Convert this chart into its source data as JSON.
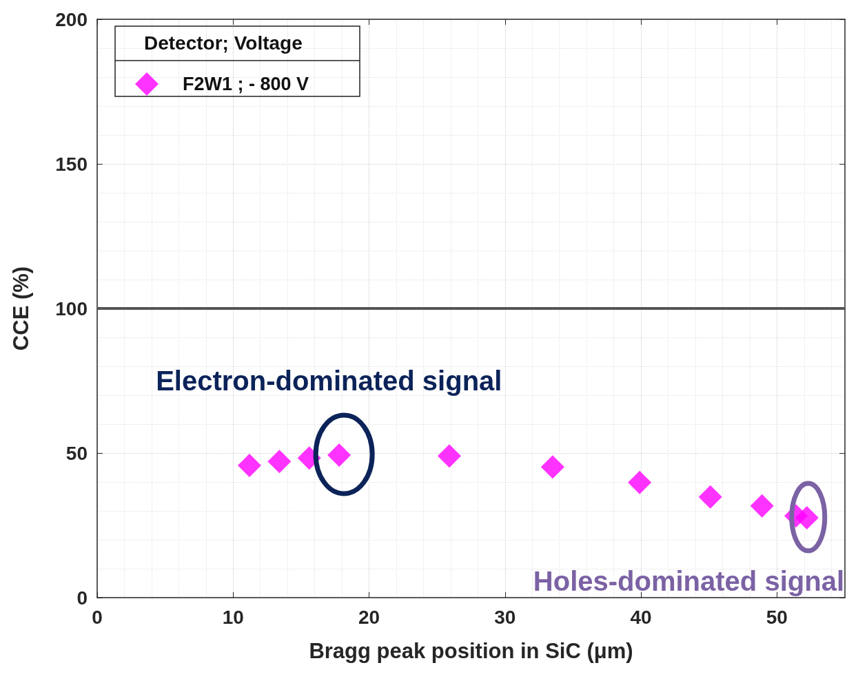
{
  "chart_data": {
    "type": "scatter",
    "xlabel": "Bragg peak position in SiC (μm)",
    "ylabel": "CCE (%)",
    "legend_title": "Detector; Voltage",
    "x": [
      11.2,
      13.4,
      15.6,
      17.8,
      25.9,
      33.5,
      39.9,
      45.1,
      48.9,
      51.4,
      52.2
    ],
    "series": [
      {
        "name": "F2W1 ; - 800 V",
        "color": "#ff00ff",
        "values": [
          45.7,
          47.1,
          48.3,
          49.3,
          49.0,
          45.2,
          39.8,
          34.8,
          31.7,
          28.3,
          27.6
        ]
      }
    ],
    "xlim": [
      0,
      55
    ],
    "xticks": [
      0,
      10,
      20,
      30,
      40,
      50
    ],
    "ylim": [
      0,
      200
    ],
    "yticks": [
      0,
      50,
      100,
      150,
      200
    ],
    "ref_lines": [
      {
        "axis": "y",
        "value": 100,
        "label": null,
        "color": "#555555"
      }
    ],
    "annotations": [
      {
        "text": "Electron-dominated signal",
        "x": 17.8,
        "y": 49.3
      },
      {
        "text": "Holes-dominated signal",
        "x": 52.2,
        "y": 27.6
      }
    ],
    "grid": true,
    "legend": "top left",
    "marker": "diamond"
  }
}
